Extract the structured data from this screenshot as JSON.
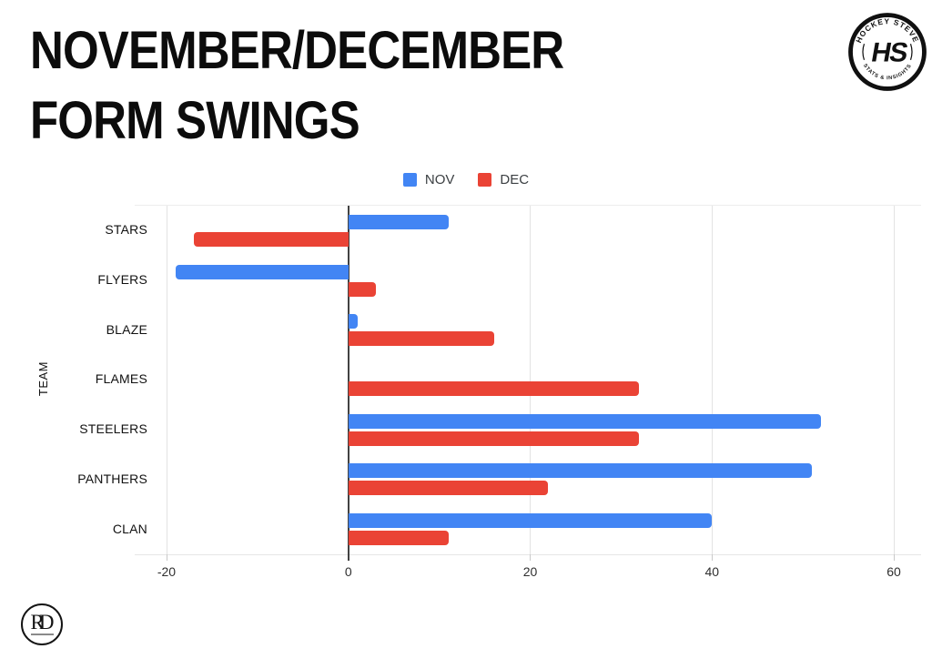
{
  "header": {
    "title_line1": "NOVEMBER/DECEMBER",
    "title_line2": "FORM SWINGS"
  },
  "badge": {
    "top_text": "HOCKEY STEVE",
    "bottom_text": "STATS & INSIGHTS",
    "monogram": "HS"
  },
  "footer_logo": {
    "monogram": "RD"
  },
  "chart_data": {
    "type": "bar",
    "orientation": "horizontal",
    "title": "NOVEMBER/DECEMBER FORM SWINGS",
    "categories": [
      "STARS",
      "FLYERS",
      "BLAZE",
      "FLAMES",
      "STEELERS",
      "PANTHERS",
      "CLAN"
    ],
    "series": [
      {
        "name": "NOV",
        "color": "#4285f4",
        "values": [
          11,
          -19,
          1,
          0,
          52,
          51,
          40
        ]
      },
      {
        "name": "DEC",
        "color": "#ea4335",
        "values": [
          -17,
          3,
          16,
          32,
          32,
          22,
          11
        ]
      }
    ],
    "xlabel": "",
    "ylabel": "TEAM",
    "xlim": [
      -23.5,
      63
    ],
    "xticks": [
      -20,
      0,
      20,
      40,
      60
    ],
    "grid": true,
    "legend_position": "top",
    "zero_line_color": "#424242",
    "gridline_color": "#e3e3e3"
  }
}
